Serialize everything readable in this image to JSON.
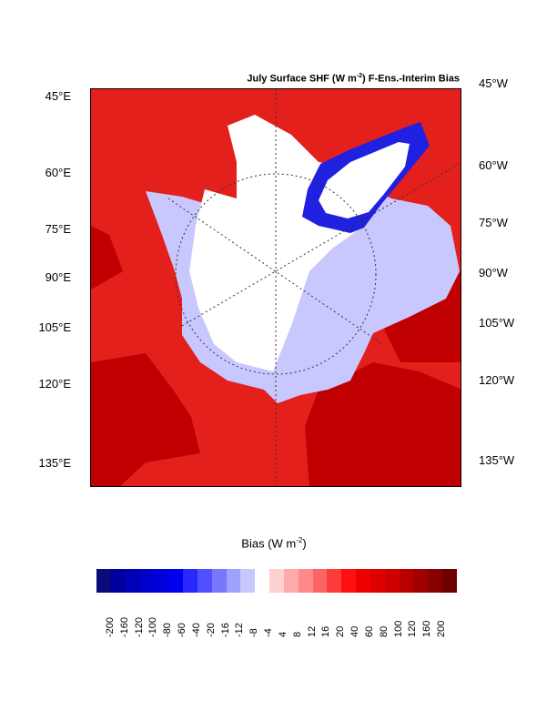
{
  "title": {
    "prefix": "July Surface SHF (W m",
    "exponent": "-2",
    "suffix": ") F-Ens.-Interim Bias"
  },
  "left_longitudes": [
    "45°E",
    "60°E",
    "75°E",
    "90°E",
    "105°E",
    "120°E",
    "135°E"
  ],
  "right_longitudes": [
    "45°W",
    "60°W",
    "75°W",
    "90°W",
    "105°W",
    "120°W",
    "135°W"
  ],
  "colorbar": {
    "title_prefix": "Bias (W m",
    "title_exponent": "-2",
    "title_suffix": ")",
    "tick_labels": [
      "-200",
      "-160",
      "-120",
      "-100",
      "-80",
      "-60",
      "-40",
      "-20",
      "-16",
      "-12",
      "-8",
      "-4",
      "4",
      "8",
      "12",
      "16",
      "20",
      "40",
      "60",
      "80",
      "100",
      "120",
      "160",
      "200"
    ],
    "colors": [
      "#0a0a7a",
      "#00009c",
      "#0000b8",
      "#0000cc",
      "#0000dd",
      "#0000f0",
      "#2828ff",
      "#5050ff",
      "#7878ff",
      "#a0a0ff",
      "#c8c8ff",
      "#ffffff",
      "#ffd0d0",
      "#ffaaaa",
      "#ff8888",
      "#ff6464",
      "#ff3c3c",
      "#ff1010",
      "#ee0000",
      "#dd0000",
      "#cc0000",
      "#b80000",
      "#a00000",
      "#880000",
      "#6e0000"
    ]
  },
  "colors": {
    "land_warm": "#e4201c",
    "land_hot": "#c00000",
    "ocean_neutral": "#ffffff",
    "cool_light": "#c8c8ff",
    "cool_strong": "#2020e0",
    "graticule": "#333333"
  }
}
